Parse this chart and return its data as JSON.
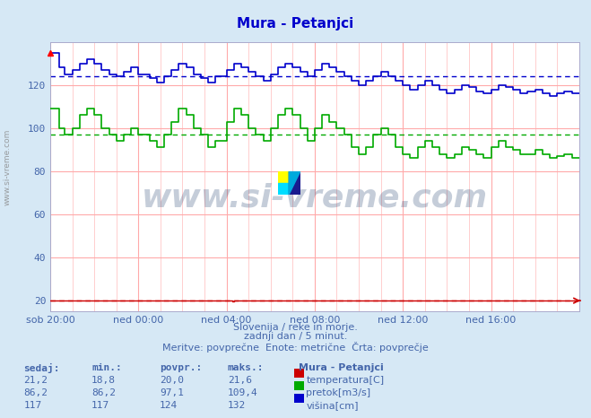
{
  "title": "Mura - Petanjci",
  "bg_color": "#d6e8f5",
  "plot_bg_color": "#ffffff",
  "grid_color_h": "#ffaaaa",
  "grid_color_v": "#ffbbbb",
  "xlim": [
    0,
    288
  ],
  "ylim": [
    15,
    140
  ],
  "yticks": [
    20,
    40,
    60,
    80,
    100,
    120
  ],
  "xtick_labels": [
    "sob 20:00",
    "ned 00:00",
    "ned 04:00",
    "ned 08:00",
    "ned 12:00",
    "ned 16:00"
  ],
  "xtick_positions": [
    0,
    48,
    96,
    144,
    192,
    240
  ],
  "temp_avg": 20.0,
  "pretok_avg": 97.1,
  "visina_avg": 124,
  "text_color": "#4466aa",
  "title_color": "#0000cc",
  "line_temp_color": "#cc0000",
  "line_pretok_color": "#00aa00",
  "line_visina_color": "#0000cc",
  "subtitle1": "Slovenija / reke in morje.",
  "subtitle2": "zadnji dan / 5 minut.",
  "subtitle3": "Meritve: povprečne  Enote: metrične  Črta: povprečje",
  "table_headers": [
    "sedaj:",
    "min.:",
    "povpr.:",
    "maks.:"
  ],
  "table_rows": [
    [
      "21,2",
      "18,8",
      "20,0",
      "21,6",
      "temperatura[C]",
      "#cc0000"
    ],
    [
      "86,2",
      "86,2",
      "97,1",
      "109,4",
      "pretok[m3/s]",
      "#00aa00"
    ],
    [
      "117",
      "117",
      "124",
      "132",
      "višina[cm]",
      "#0000cc"
    ]
  ],
  "station_label": "Mura - Petanjci",
  "visina_intervals": [
    [
      0,
      5,
      135
    ],
    [
      5,
      8,
      128
    ],
    [
      8,
      12,
      125
    ],
    [
      12,
      16,
      127
    ],
    [
      16,
      20,
      130
    ],
    [
      20,
      24,
      132
    ],
    [
      24,
      28,
      130
    ],
    [
      28,
      32,
      127
    ],
    [
      32,
      36,
      125
    ],
    [
      36,
      40,
      124
    ],
    [
      40,
      44,
      126
    ],
    [
      44,
      48,
      128
    ],
    [
      48,
      54,
      125
    ],
    [
      54,
      58,
      123
    ],
    [
      58,
      62,
      121
    ],
    [
      62,
      66,
      124
    ],
    [
      66,
      70,
      127
    ],
    [
      70,
      74,
      130
    ],
    [
      74,
      78,
      128
    ],
    [
      78,
      82,
      125
    ],
    [
      82,
      86,
      123
    ],
    [
      86,
      90,
      121
    ],
    [
      90,
      96,
      124
    ],
    [
      96,
      100,
      127
    ],
    [
      100,
      104,
      130
    ],
    [
      104,
      108,
      128
    ],
    [
      108,
      112,
      126
    ],
    [
      112,
      116,
      124
    ],
    [
      116,
      120,
      122
    ],
    [
      120,
      124,
      125
    ],
    [
      124,
      128,
      128
    ],
    [
      128,
      132,
      130
    ],
    [
      132,
      136,
      128
    ],
    [
      136,
      140,
      126
    ],
    [
      140,
      144,
      124
    ],
    [
      144,
      148,
      127
    ],
    [
      148,
      152,
      130
    ],
    [
      152,
      156,
      128
    ],
    [
      156,
      160,
      126
    ],
    [
      160,
      164,
      124
    ],
    [
      164,
      168,
      122
    ],
    [
      168,
      172,
      120
    ],
    [
      172,
      176,
      122
    ],
    [
      176,
      180,
      124
    ],
    [
      180,
      184,
      126
    ],
    [
      184,
      188,
      124
    ],
    [
      188,
      192,
      122
    ],
    [
      192,
      196,
      120
    ],
    [
      196,
      200,
      118
    ],
    [
      200,
      204,
      120
    ],
    [
      204,
      208,
      122
    ],
    [
      208,
      212,
      120
    ],
    [
      212,
      216,
      118
    ],
    [
      216,
      220,
      116
    ],
    [
      220,
      224,
      118
    ],
    [
      224,
      228,
      120
    ],
    [
      228,
      232,
      119
    ],
    [
      232,
      236,
      117
    ],
    [
      236,
      240,
      116
    ],
    [
      240,
      244,
      118
    ],
    [
      244,
      248,
      120
    ],
    [
      248,
      252,
      119
    ],
    [
      252,
      256,
      118
    ],
    [
      256,
      260,
      116
    ],
    [
      260,
      264,
      117
    ],
    [
      264,
      268,
      118
    ],
    [
      268,
      272,
      116
    ],
    [
      272,
      276,
      115
    ],
    [
      276,
      280,
      116
    ],
    [
      280,
      284,
      117
    ],
    [
      284,
      289,
      116
    ]
  ],
  "pretok_intervals": [
    [
      0,
      5,
      109
    ],
    [
      5,
      8,
      100
    ],
    [
      8,
      12,
      97
    ],
    [
      12,
      16,
      100
    ],
    [
      16,
      20,
      106
    ],
    [
      20,
      24,
      109
    ],
    [
      24,
      28,
      106
    ],
    [
      28,
      32,
      100
    ],
    [
      32,
      36,
      97
    ],
    [
      36,
      40,
      94
    ],
    [
      40,
      44,
      97
    ],
    [
      44,
      48,
      100
    ],
    [
      48,
      54,
      97
    ],
    [
      54,
      58,
      94
    ],
    [
      58,
      62,
      91
    ],
    [
      62,
      66,
      97
    ],
    [
      66,
      70,
      103
    ],
    [
      70,
      74,
      109
    ],
    [
      74,
      78,
      106
    ],
    [
      78,
      82,
      100
    ],
    [
      82,
      86,
      97
    ],
    [
      86,
      90,
      91
    ],
    [
      90,
      96,
      94
    ],
    [
      96,
      100,
      103
    ],
    [
      100,
      104,
      109
    ],
    [
      104,
      108,
      106
    ],
    [
      108,
      112,
      100
    ],
    [
      112,
      116,
      97
    ],
    [
      116,
      120,
      94
    ],
    [
      120,
      124,
      100
    ],
    [
      124,
      128,
      106
    ],
    [
      128,
      132,
      109
    ],
    [
      132,
      136,
      106
    ],
    [
      136,
      140,
      100
    ],
    [
      140,
      144,
      94
    ],
    [
      144,
      148,
      100
    ],
    [
      148,
      152,
      106
    ],
    [
      152,
      156,
      103
    ],
    [
      156,
      160,
      100
    ],
    [
      160,
      164,
      97
    ],
    [
      164,
      168,
      91
    ],
    [
      168,
      172,
      88
    ],
    [
      172,
      176,
      91
    ],
    [
      176,
      180,
      97
    ],
    [
      180,
      184,
      100
    ],
    [
      184,
      188,
      97
    ],
    [
      188,
      192,
      91
    ],
    [
      192,
      196,
      88
    ],
    [
      196,
      200,
      86
    ],
    [
      200,
      204,
      91
    ],
    [
      204,
      208,
      94
    ],
    [
      208,
      212,
      91
    ],
    [
      212,
      216,
      88
    ],
    [
      216,
      220,
      86
    ],
    [
      220,
      224,
      88
    ],
    [
      224,
      228,
      91
    ],
    [
      228,
      232,
      90
    ],
    [
      232,
      236,
      88
    ],
    [
      236,
      240,
      86
    ],
    [
      240,
      244,
      91
    ],
    [
      244,
      248,
      94
    ],
    [
      248,
      252,
      91
    ],
    [
      252,
      256,
      90
    ],
    [
      256,
      260,
      88
    ],
    [
      260,
      264,
      88
    ],
    [
      264,
      268,
      90
    ],
    [
      268,
      272,
      88
    ],
    [
      272,
      276,
      86
    ],
    [
      276,
      280,
      87
    ],
    [
      280,
      284,
      88
    ],
    [
      284,
      289,
      86
    ]
  ]
}
